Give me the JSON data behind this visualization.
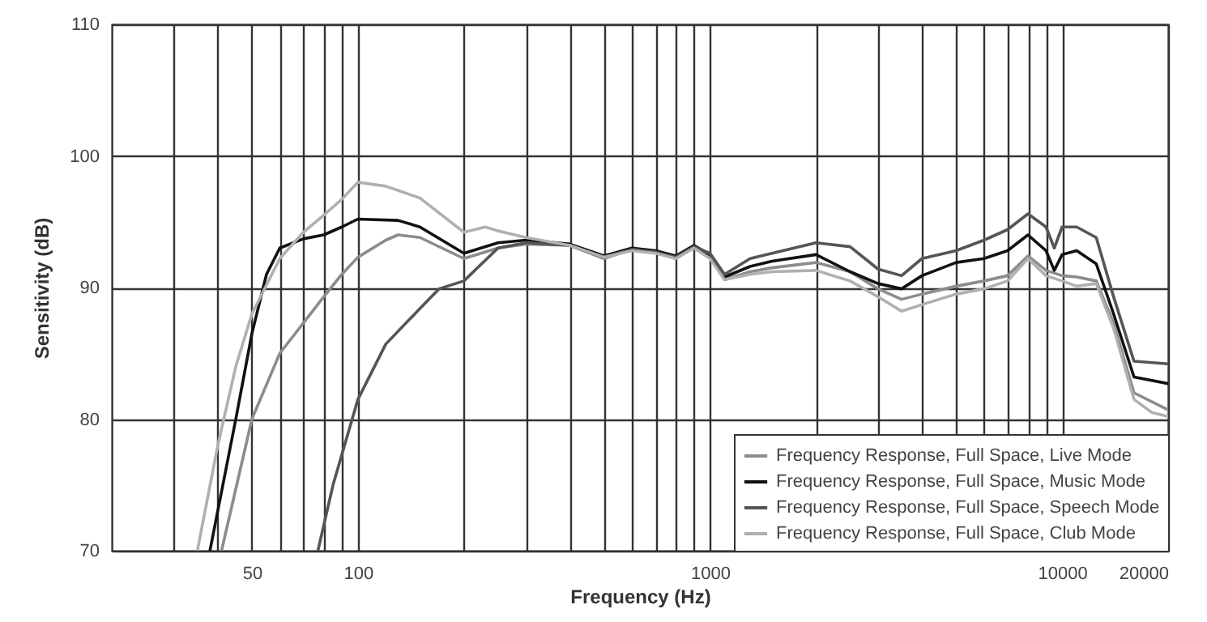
{
  "chart_data": {
    "type": "line",
    "xlabel": "Frequency (Hz)",
    "ylabel": "Sensitivity (dB)",
    "log": "x",
    "grid": true,
    "legend": "bottom right",
    "xlim": [
      20,
      20000
    ],
    "ylim": [
      70,
      110
    ],
    "xticks": [
      {
        "value": 30,
        "label": null
      },
      {
        "value": 40,
        "label": null
      },
      50,
      {
        "value": 60,
        "label": null
      },
      {
        "value": 70,
        "label": null
      },
      {
        "value": 80,
        "label": null
      },
      {
        "value": 90,
        "label": null
      },
      100,
      {
        "value": 200,
        "label": null
      },
      {
        "value": 300,
        "label": null
      },
      {
        "value": 400,
        "label": null
      },
      {
        "value": 500,
        "label": null
      },
      {
        "value": 600,
        "label": null
      },
      {
        "value": 700,
        "label": null
      },
      {
        "value": 800,
        "label": null
      },
      {
        "value": 900,
        "label": null
      },
      1000,
      {
        "value": 2000,
        "label": null
      },
      {
        "value": 3000,
        "label": null
      },
      {
        "value": 4000,
        "label": null
      },
      {
        "value": 5000,
        "label": null
      },
      {
        "value": 6000,
        "label": null
      },
      {
        "value": 7000,
        "label": null
      },
      {
        "value": 8000,
        "label": null
      },
      {
        "value": 9000,
        "label": null
      },
      10000,
      20000
    ],
    "yticks": [
      70,
      80,
      90,
      100,
      110
    ],
    "series": [
      {
        "name": "Frequency Response, Full Space, Live Mode",
        "color": "#8c8c8c",
        "x": [
          41,
          50,
          60,
          70,
          80,
          90,
          100,
          120,
          130,
          150,
          200,
          250,
          300,
          400,
          500,
          600,
          700,
          800,
          900,
          1000,
          1100,
          1300,
          1500,
          2000,
          2500,
          3000,
          3500,
          4000,
          5000,
          6000,
          7000,
          8000,
          9000,
          10000,
          11000,
          12500,
          14000,
          16000,
          20000
        ],
        "values": [
          70,
          80,
          85,
          87.3,
          89.3,
          91,
          92.3,
          93.6,
          94,
          93.8,
          92.2,
          93,
          93.3,
          93.2,
          92.2,
          92.9,
          92.7,
          92.2,
          93.1,
          92.3,
          90.6,
          91.2,
          91.5,
          91.9,
          91.2,
          89.9,
          89.1,
          89.5,
          90.1,
          90.5,
          90.9,
          92.4,
          91.3,
          90.9,
          90.8,
          90.5,
          87.3,
          82,
          80.7
        ]
      },
      {
        "name": "Frequency Response, Full Space, Music Mode",
        "color": "#111111",
        "x": [
          38,
          45,
          50,
          55,
          60,
          70,
          80,
          90,
          100,
          130,
          150,
          200,
          250,
          300,
          400,
          500,
          600,
          700,
          800,
          900,
          1000,
          1100,
          1300,
          1500,
          2000,
          2500,
          3000,
          3500,
          4000,
          5000,
          6000,
          7000,
          8000,
          9000,
          9500,
          10000,
          11000,
          12500,
          14000,
          16000,
          20000
        ],
        "values": [
          70,
          80,
          86.5,
          91,
          93,
          93.7,
          94,
          94.6,
          95.2,
          95.1,
          94.6,
          92.6,
          93.4,
          93.6,
          93.3,
          92.4,
          93,
          92.8,
          92.4,
          93.2,
          92.5,
          90.8,
          91.6,
          92,
          92.5,
          91.2,
          90.3,
          89.9,
          90.9,
          91.9,
          92.2,
          92.8,
          94,
          92.8,
          91.3,
          92.5,
          92.8,
          91.8,
          88,
          83.2,
          82.7
        ]
      },
      {
        "name": "Frequency Response, Full Space, Speech Mode",
        "color": "#555555",
        "x": [
          77,
          85,
          100,
          120,
          150,
          170,
          200,
          250,
          300,
          400,
          500,
          600,
          700,
          800,
          900,
          1000,
          1100,
          1300,
          1500,
          2000,
          2500,
          3000,
          3500,
          4000,
          5000,
          6000,
          7000,
          8000,
          9000,
          9500,
          10000,
          11000,
          12500,
          14000,
          16000,
          20000
        ],
        "values": [
          70,
          75,
          81.5,
          85.7,
          88.4,
          89.9,
          90.5,
          93,
          93.4,
          93.2,
          92.3,
          92.9,
          92.7,
          92.3,
          93.1,
          92.6,
          91,
          92.2,
          92.6,
          93.4,
          93.1,
          91.4,
          90.9,
          92.2,
          92.8,
          93.6,
          94.4,
          95.6,
          94.6,
          93,
          94.6,
          94.6,
          93.8,
          89.3,
          84.4,
          84.2
        ]
      },
      {
        "name": "Frequency Response, Full Space, Club Mode",
        "color": "#b0b0b0",
        "x": [
          35,
          40,
          45,
          50,
          60,
          70,
          80,
          90,
          100,
          120,
          150,
          200,
          230,
          250,
          300,
          400,
          500,
          600,
          700,
          800,
          900,
          1000,
          1100,
          1300,
          1500,
          2000,
          2500,
          3000,
          3500,
          4000,
          5000,
          6000,
          7000,
          8000,
          9000,
          10000,
          11000,
          12500,
          14000,
          16000,
          18000,
          20000
        ],
        "values": [
          70,
          78,
          84,
          88,
          92.2,
          94.2,
          95.5,
          96.7,
          98,
          97.7,
          96.8,
          94.2,
          94.6,
          94.3,
          93.8,
          93.2,
          92.3,
          92.8,
          92.6,
          92.2,
          93,
          92.2,
          90.6,
          91,
          91.2,
          91.3,
          90.5,
          89.3,
          88.2,
          88.7,
          89.5,
          89.9,
          90.5,
          92.2,
          90.9,
          90.5,
          90.1,
          90.3,
          86.9,
          81.5,
          80.5,
          80.2
        ]
      }
    ]
  }
}
